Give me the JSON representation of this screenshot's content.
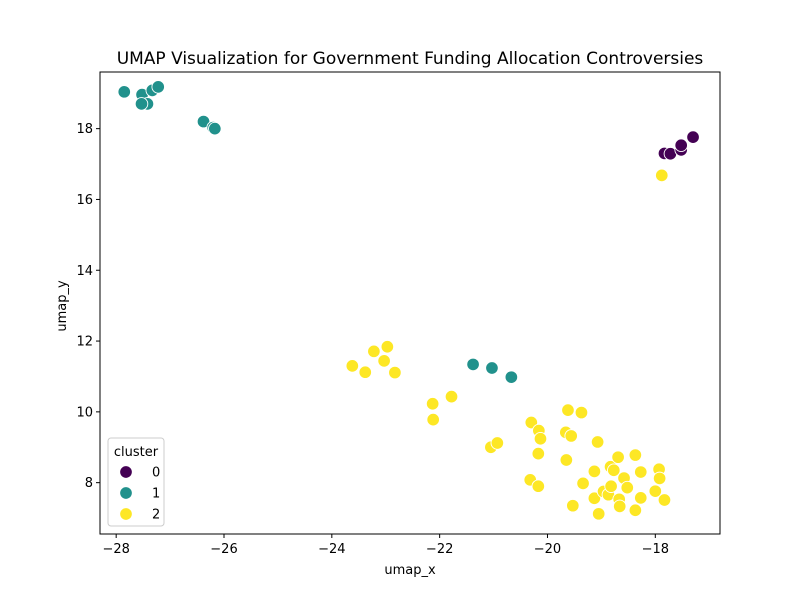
{
  "chart_data": {
    "type": "scatter",
    "title": "UMAP Visualization for Government Funding Allocation Controversies",
    "xlabel": "umap_x",
    "ylabel": "umap_y",
    "xlim": [
      -28.3,
      -16.8
    ],
    "ylim": [
      6.55,
      19.6
    ],
    "xticks": [
      -28,
      -26,
      -24,
      -22,
      -20,
      -18
    ],
    "yticks": [
      8,
      10,
      12,
      14,
      16,
      18
    ],
    "grid": false,
    "legend": {
      "title": "cluster",
      "placement": "lower-left"
    },
    "series": [
      {
        "name": "0",
        "color": "#440154",
        "points": [
          [
            -17.83,
            17.3
          ],
          [
            -17.72,
            17.29
          ],
          [
            -17.52,
            17.4
          ],
          [
            -17.52,
            17.53
          ],
          [
            -17.3,
            17.76
          ]
        ]
      },
      {
        "name": "1",
        "color": "#21918c",
        "points": [
          [
            -27.85,
            19.04
          ],
          [
            -27.52,
            18.96
          ],
          [
            -27.42,
            18.7
          ],
          [
            -27.53,
            18.7
          ],
          [
            -27.33,
            19.08
          ],
          [
            -27.22,
            19.18
          ],
          [
            -26.38,
            18.2
          ],
          [
            -26.2,
            18.03
          ],
          [
            -26.17,
            18.0
          ],
          [
            -21.38,
            11.34
          ],
          [
            -21.03,
            11.24
          ],
          [
            -20.67,
            10.98
          ]
        ]
      },
      {
        "name": "2",
        "color": "#fde725",
        "points": [
          [
            -17.88,
            16.68
          ],
          [
            -23.62,
            11.3
          ],
          [
            -23.38,
            11.12
          ],
          [
            -23.22,
            11.71
          ],
          [
            -22.97,
            11.84
          ],
          [
            -23.03,
            11.44
          ],
          [
            -22.83,
            11.11
          ],
          [
            -22.13,
            10.23
          ],
          [
            -22.12,
            9.78
          ],
          [
            -21.78,
            10.43
          ],
          [
            -21.05,
            9.0
          ],
          [
            -20.93,
            9.12
          ],
          [
            -20.32,
            8.08
          ],
          [
            -20.3,
            9.7
          ],
          [
            -20.16,
            9.47
          ],
          [
            -20.17,
            8.82
          ],
          [
            -20.13,
            9.24
          ],
          [
            -20.17,
            7.9
          ],
          [
            -19.62,
            10.05
          ],
          [
            -19.66,
            9.42
          ],
          [
            -19.56,
            9.32
          ],
          [
            -19.65,
            8.64
          ],
          [
            -19.53,
            7.35
          ],
          [
            -19.37,
            9.98
          ],
          [
            -19.34,
            7.98
          ],
          [
            -19.13,
            8.32
          ],
          [
            -19.13,
            7.56
          ],
          [
            -19.07,
            9.15
          ],
          [
            -19.05,
            7.12
          ],
          [
            -18.96,
            7.75
          ],
          [
            -18.87,
            7.66
          ],
          [
            -18.83,
            8.45
          ],
          [
            -18.82,
            7.9
          ],
          [
            -18.77,
            8.35
          ],
          [
            -18.69,
            8.72
          ],
          [
            -18.67,
            7.53
          ],
          [
            -18.66,
            7.33
          ],
          [
            -18.58,
            8.13
          ],
          [
            -18.52,
            7.86
          ],
          [
            -18.37,
            8.78
          ],
          [
            -18.37,
            7.22
          ],
          [
            -18.27,
            8.3
          ],
          [
            -18.27,
            7.57
          ],
          [
            -18.0,
            7.76
          ],
          [
            -17.93,
            8.38
          ],
          [
            -17.92,
            8.12
          ],
          [
            -17.83,
            7.51
          ]
        ]
      }
    ]
  }
}
